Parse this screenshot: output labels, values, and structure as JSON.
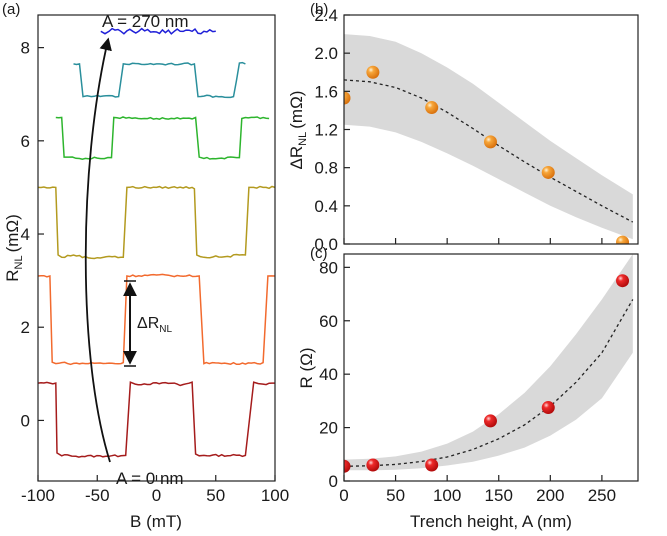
{
  "chart_data": [
    {
      "panel_label": "(a)",
      "type": "line",
      "xlabel": "B (mT)",
      "ylabel": "R",
      "ylabel_sub": "NL",
      "ylabel_unit": "(mΩ)",
      "xlim": [
        -100,
        100
      ],
      "ylim": [
        -1.3,
        8.7
      ],
      "xticks": [
        -100,
        -50,
        0,
        50,
        100
      ],
      "xtick_labels": [
        "-100",
        "-50",
        "0",
        "50",
        "100"
      ],
      "yticks": [
        0,
        2,
        4,
        6,
        8
      ],
      "ytick_labels": [
        "0",
        "2",
        "4",
        "6",
        "8"
      ],
      "annotations": {
        "top": "A = 270 nm",
        "bottom": "A = 0 nm",
        "delta_main": "ΔR",
        "delta_sub": "NL"
      },
      "series": [
        {
          "color": "#a51c1c",
          "x": [
            -100,
            -85,
            -84,
            -80,
            -75,
            -68,
            -30,
            -26,
            -22,
            -18,
            15,
            20,
            30,
            33,
            36,
            40,
            75,
            82,
            86,
            90,
            100
          ],
          "y": [
            0.8,
            0.8,
            -0.7,
            -0.76,
            -0.74,
            -0.77,
            -0.76,
            -0.75,
            0.82,
            0.78,
            0.8,
            0.75,
            0.82,
            -0.72,
            -0.76,
            -0.75,
            -0.75,
            0.82,
            0.79,
            0.78,
            0.8
          ]
        },
        {
          "color": "#f26a2e",
          "x": [
            -100,
            -90,
            -88,
            -85,
            -80,
            -75,
            -40,
            -35,
            -30,
            -28,
            -25,
            0,
            20,
            25,
            36,
            40,
            42,
            60,
            80,
            85,
            90,
            94,
            100
          ],
          "y": [
            3.1,
            3.1,
            1.25,
            1.22,
            1.24,
            1.22,
            1.23,
            1.22,
            1.22,
            1.24,
            3.1,
            3.12,
            3.1,
            3.1,
            3.1,
            1.22,
            1.24,
            1.22,
            1.23,
            1.22,
            1.24,
            3.1,
            3.1
          ]
        },
        {
          "color": "#b39a1f",
          "x": [
            -100,
            -85,
            -83,
            -80,
            -70,
            -55,
            -40,
            -30,
            -28,
            -25,
            0,
            30,
            32,
            34,
            40,
            60,
            70,
            75,
            78,
            82,
            90,
            100
          ],
          "y": [
            5.0,
            5.0,
            3.55,
            3.5,
            3.55,
            3.48,
            3.52,
            3.5,
            3.5,
            5.0,
            5.0,
            5.0,
            4.97,
            3.55,
            3.5,
            3.52,
            3.55,
            3.55,
            5.0,
            5.0,
            5.0,
            5.0
          ]
        },
        {
          "color": "#2db52d",
          "x": [
            -85,
            -80,
            -78,
            -74,
            -65,
            -50,
            -38,
            -36,
            0,
            30,
            33,
            36,
            40,
            55,
            70,
            72,
            75,
            90,
            95
          ],
          "y": [
            6.5,
            6.5,
            5.65,
            5.65,
            5.62,
            5.63,
            5.64,
            6.5,
            6.48,
            6.47,
            6.5,
            5.65,
            5.62,
            5.63,
            5.64,
            6.48,
            6.5,
            6.5,
            6.48
          ]
        },
        {
          "color": "#2a8f9c",
          "x": [
            -70,
            -65,
            -62,
            -55,
            -40,
            -32,
            -28,
            0,
            10,
            32,
            35,
            40,
            55,
            65,
            70,
            75
          ],
          "y": [
            7.65,
            7.65,
            6.95,
            6.95,
            6.97,
            6.95,
            7.65,
            7.65,
            7.65,
            7.65,
            6.95,
            6.96,
            6.95,
            6.95,
            7.67,
            7.65
          ]
        },
        {
          "color": "#2020d8",
          "x": [
            -47,
            -40,
            -30,
            -20,
            -15,
            15,
            20,
            30,
            40,
            50
          ],
          "y": [
            8.35,
            8.35,
            8.35,
            8.35,
            8.35,
            8.35,
            8.35,
            8.35,
            8.35,
            8.35
          ]
        }
      ]
    },
    {
      "panel_label": "(b)",
      "type": "scatter",
      "ylabel": "ΔR",
      "ylabel_sub": "NL",
      "ylabel_unit": "(mΩ)",
      "xlim": [
        0,
        285
      ],
      "ylim": [
        0,
        2.4
      ],
      "yticks": [
        0.0,
        0.4,
        0.8,
        1.2,
        1.6,
        2.0,
        2.4
      ],
      "ytick_labels": [
        "0.0",
        "0.4",
        "0.8",
        "1.2",
        "1.6",
        "2.0",
        "2.4"
      ],
      "point_color": "#f29420",
      "x": [
        0,
        28,
        85,
        142,
        198,
        270
      ],
      "y": [
        1.53,
        1.8,
        1.43,
        1.07,
        0.75,
        0.02
      ],
      "fit_x": [
        0,
        25,
        50,
        75,
        100,
        125,
        150,
        175,
        200,
        225,
        250,
        280
      ],
      "fit_y": [
        1.72,
        1.7,
        1.64,
        1.53,
        1.38,
        1.21,
        1.03,
        0.86,
        0.7,
        0.55,
        0.4,
        0.23
      ],
      "band_upper": [
        2.2,
        2.18,
        2.12,
        2.0,
        1.85,
        1.68,
        1.48,
        1.28,
        1.08,
        0.9,
        0.72,
        0.52
      ],
      "band_lower": [
        1.25,
        1.23,
        1.17,
        1.07,
        0.95,
        0.82,
        0.68,
        0.54,
        0.4,
        0.28,
        0.17,
        0.05
      ]
    },
    {
      "panel_label": "(c)",
      "type": "scatter",
      "xlabel": "Trench height, A (nm)",
      "ylabel": "R (Ω)",
      "xlim": [
        0,
        285
      ],
      "ylim": [
        0,
        85
      ],
      "xticks": [
        0,
        50,
        100,
        150,
        200,
        250
      ],
      "xtick_labels": [
        "0",
        "50",
        "100",
        "150",
        "200",
        "250"
      ],
      "yticks": [
        0,
        20,
        40,
        60,
        80
      ],
      "ytick_labels": [
        "0",
        "20",
        "40",
        "60",
        "80"
      ],
      "point_color": "#e01818",
      "x": [
        0,
        28,
        85,
        142,
        198,
        270
      ],
      "y": [
        5.5,
        6.0,
        6.0,
        22.5,
        27.5,
        75.0
      ],
      "fit_x": [
        0,
        25,
        50,
        75,
        100,
        125,
        150,
        175,
        200,
        225,
        250,
        280
      ],
      "fit_y": [
        5.5,
        5.7,
        6.2,
        7.3,
        9.0,
        11.8,
        15.8,
        21.0,
        28.0,
        37.0,
        48.0,
        68.0
      ],
      "band_upper": [
        8.0,
        8.3,
        9.2,
        11.0,
        14.0,
        18.5,
        25.0,
        33.0,
        43.0,
        55.0,
        68.0,
        85.0
      ],
      "band_lower": [
        4.0,
        4.0,
        4.2,
        4.8,
        5.8,
        7.2,
        9.5,
        12.5,
        17.0,
        23.0,
        31.0,
        48.0
      ]
    }
  ]
}
